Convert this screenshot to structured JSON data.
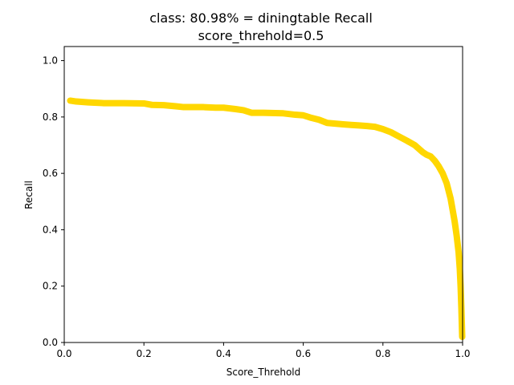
{
  "chart_data": {
    "type": "line",
    "title": "class: 80.98% = diningtable Recall",
    "subtitle": "score_threhold=0.5",
    "xlabel": "Score_Threhold",
    "ylabel": "Recall",
    "xlim": [
      0.0,
      1.0
    ],
    "ylim": [
      0.0,
      1.05
    ],
    "xticks": [
      "0.0",
      "0.2",
      "0.4",
      "0.6",
      "0.8",
      "1.0"
    ],
    "yticks": [
      "0.0",
      "0.2",
      "0.4",
      "0.6",
      "0.8",
      "1.0"
    ],
    "grid": false,
    "line_color": "#ffd700",
    "series": [
      {
        "x": [
          0.015,
          0.03,
          0.06,
          0.1,
          0.15,
          0.2,
          0.22,
          0.25,
          0.28,
          0.3,
          0.35,
          0.38,
          0.4,
          0.43,
          0.45,
          0.47,
          0.5,
          0.55,
          0.58,
          0.6,
          0.62,
          0.64,
          0.66,
          0.7,
          0.72,
          0.74,
          0.76,
          0.78,
          0.8,
          0.82,
          0.84,
          0.86,
          0.88,
          0.9,
          0.91,
          0.92,
          0.93,
          0.94,
          0.95,
          0.96,
          0.97,
          0.975,
          0.98,
          0.985,
          0.99,
          0.993,
          0.995,
          0.997,
          0.999
        ],
        "y": [
          0.858,
          0.855,
          0.852,
          0.849,
          0.849,
          0.848,
          0.843,
          0.842,
          0.838,
          0.835,
          0.835,
          0.833,
          0.833,
          0.828,
          0.824,
          0.815,
          0.815,
          0.813,
          0.808,
          0.806,
          0.797,
          0.79,
          0.779,
          0.774,
          0.772,
          0.77,
          0.768,
          0.765,
          0.757,
          0.746,
          0.731,
          0.716,
          0.7,
          0.675,
          0.666,
          0.66,
          0.645,
          0.625,
          0.6,
          0.565,
          0.51,
          0.47,
          0.43,
          0.38,
          0.32,
          0.26,
          0.2,
          0.12,
          0.02
        ]
      }
    ]
  }
}
